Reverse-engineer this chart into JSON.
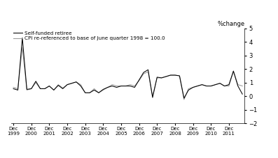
{
  "self_funded": [
    0.55,
    0.45,
    4.3,
    0.5,
    0.55,
    1.1,
    0.55,
    0.55,
    0.75,
    0.45,
    0.8,
    0.55,
    0.85,
    0.95,
    1.05,
    0.75,
    0.25,
    0.25,
    0.45,
    0.25,
    0.5,
    0.65,
    0.75,
    0.65,
    0.75,
    0.75,
    0.75,
    0.65,
    1.2,
    1.75,
    1.95,
    -0.1,
    1.4,
    1.35,
    1.45,
    1.55,
    1.55,
    1.5,
    -0.15,
    0.45,
    0.65,
    0.75,
    0.85,
    0.75,
    0.75,
    0.85,
    0.95,
    0.75,
    0.85,
    1.85,
    0.75,
    0.15
  ],
  "cpi": [
    0.65,
    0.55,
    3.6,
    0.45,
    0.55,
    1.0,
    0.55,
    0.55,
    0.75,
    0.45,
    0.85,
    0.6,
    0.85,
    0.95,
    1.05,
    0.85,
    0.25,
    0.25,
    0.55,
    0.25,
    0.45,
    0.65,
    0.85,
    0.75,
    0.75,
    0.75,
    0.85,
    0.75,
    1.15,
    1.65,
    1.8,
    0.0,
    1.35,
    1.35,
    1.45,
    1.55,
    1.55,
    1.5,
    -0.25,
    0.55,
    0.65,
    0.75,
    0.85,
    0.75,
    0.75,
    0.85,
    0.95,
    0.75,
    0.75,
    1.85,
    0.85,
    0.75
  ],
  "ylim": [
    -2,
    5
  ],
  "yticks": [
    -2,
    -1,
    0,
    1,
    2,
    3,
    4,
    5
  ],
  "ylabel": "%change",
  "self_funded_color": "#000000",
  "cpi_color": "#999999",
  "self_funded_label": "Self-funded retiree",
  "cpi_label": "CPI re-referenced to base of June quarter 1998 = 100.0",
  "xtick_years": [
    1999,
    2000,
    2001,
    2002,
    2003,
    2004,
    2005,
    2006,
    2007,
    2008,
    2009,
    2010,
    2011
  ],
  "background_color": "#ffffff",
  "line_width": 0.75
}
